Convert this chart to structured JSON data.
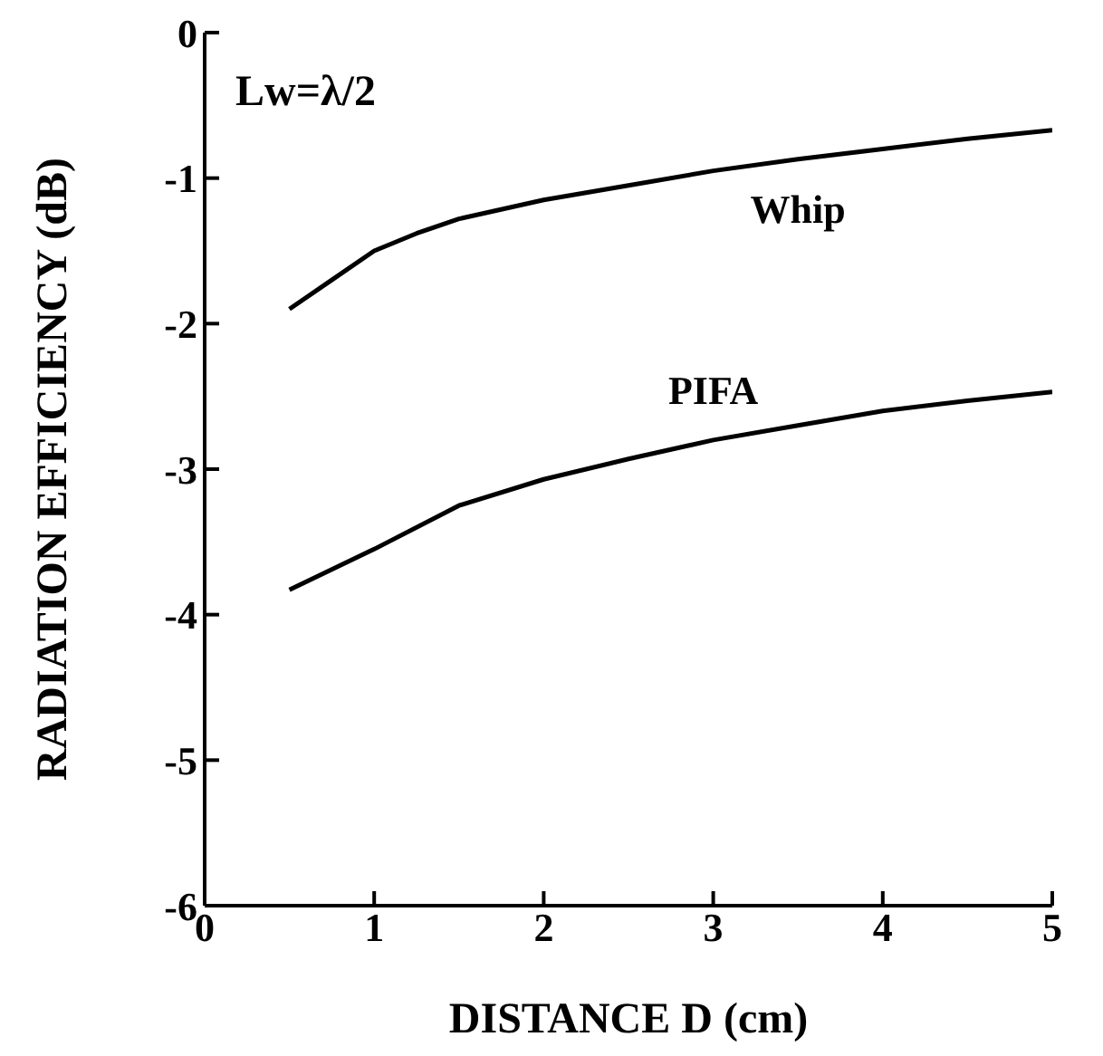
{
  "chart_data": {
    "type": "line",
    "xlabel": "DISTANCE D (cm)",
    "ylabel": "RADIATION EFFICIENCY (dB)",
    "annotations": [
      "Lw=λ/2"
    ],
    "xlim": [
      0,
      5
    ],
    "xticks": [
      0,
      1,
      2,
      3,
      4,
      5
    ],
    "ylim": [
      -6,
      0
    ],
    "yticks": [
      -6,
      -5,
      -4,
      -3,
      -2,
      -1,
      0
    ],
    "grid": false,
    "legend": false,
    "marker": "none",
    "line_style": "solid",
    "series": [
      {
        "name": "Whip",
        "color": "#000000",
        "x": [
          0.5,
          0.75,
          1,
          1.25,
          1.5,
          2,
          2.5,
          3,
          3.5,
          4,
          4.5,
          5
        ],
        "values": [
          -1.9,
          -1.7,
          -1.5,
          -1.38,
          -1.28,
          -1.15,
          -1.05,
          -0.95,
          -0.87,
          -0.8,
          -0.73,
          -0.67
        ]
      },
      {
        "name": "PIFA",
        "color": "#000000",
        "x": [
          0.5,
          1,
          1.5,
          2,
          2.5,
          3,
          3.5,
          4,
          4.5,
          5
        ],
        "values": [
          -3.83,
          -3.55,
          -3.25,
          -3.07,
          -2.93,
          -2.8,
          -2.7,
          -2.6,
          -2.53,
          -2.47
        ]
      }
    ]
  }
}
